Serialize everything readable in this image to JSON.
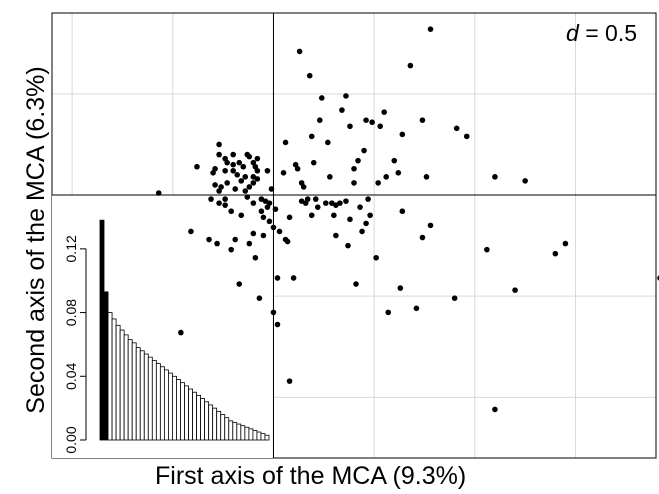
{
  "chart_data": {
    "type": "scatter",
    "xlabel": "First axis of the MCA (9.3%)",
    "ylabel": "Second axis of the MCA (6.3%)",
    "scale_label": {
      "symbol": "d",
      "text": " = 0.5"
    },
    "grid": true,
    "xlim": [
      -1.1,
      1.9
    ],
    "ylim": [
      -1.3,
      0.9
    ],
    "points": [
      [
        -0.57,
        0.01
      ],
      [
        -0.41,
        -0.18
      ],
      [
        -0.38,
        0.14
      ],
      [
        -0.3,
        0.11
      ],
      [
        -0.27,
        0.25
      ],
      [
        -0.27,
        0.2
      ],
      [
        -0.29,
        0.13
      ],
      [
        -0.29,
        0.05
      ],
      [
        -0.26,
        0.04
      ],
      [
        -0.24,
        0.18
      ],
      [
        -0.24,
        -0.02
      ],
      [
        -0.24,
        -0.05
      ],
      [
        -0.21,
        -0.08
      ],
      [
        -0.31,
        -0.02
      ],
      [
        -0.32,
        -0.22
      ],
      [
        -0.28,
        -0.24
      ],
      [
        -0.23,
        0.16
      ],
      [
        -0.2,
        0.2
      ],
      [
        -0.2,
        0.15
      ],
      [
        -0.2,
        0.12
      ],
      [
        -0.19,
        0.03
      ],
      [
        -0.18,
        0.1
      ],
      [
        -0.17,
        0.16
      ],
      [
        -0.16,
        0.07
      ],
      [
        -0.15,
        0.14
      ],
      [
        -0.14,
        0.09
      ],
      [
        -0.13,
        0.2
      ],
      [
        -0.12,
        0.19
      ],
      [
        -0.12,
        0.04
      ],
      [
        -0.1,
        0.16
      ],
      [
        -0.1,
        0.09
      ],
      [
        -0.1,
        0.06
      ],
      [
        -0.1,
        -0.04
      ],
      [
        -0.09,
        0.14
      ],
      [
        -0.08,
        0.18
      ],
      [
        -0.08,
        0.12
      ],
      [
        -0.08,
        0.08
      ],
      [
        -0.06,
        -0.02
      ],
      [
        -0.06,
        -0.08
      ],
      [
        -0.05,
        -0.11
      ],
      [
        -0.05,
        -0.2
      ],
      [
        -0.04,
        -0.03
      ],
      [
        -0.03,
        0.12
      ],
      [
        -0.03,
        -0.06
      ],
      [
        -0.02,
        -0.13
      ],
      [
        -0.01,
        0.03
      ],
      [
        0,
        -0.16
      ],
      [
        0.01,
        -0.07
      ],
      [
        0.03,
        -0.18
      ],
      [
        0.05,
        0.11
      ],
      [
        0.06,
        0.26
      ],
      [
        0.07,
        -0.23
      ],
      [
        0.08,
        -0.11
      ],
      [
        0.1,
        -0.41
      ],
      [
        -0.09,
        -0.31
      ],
      [
        -0.21,
        -0.27
      ],
      [
        -0.19,
        -0.22
      ],
      [
        -0.12,
        -0.24
      ],
      [
        -0.17,
        -0.44
      ],
      [
        -0.1,
        -0.19
      ],
      [
        -0.02,
        -0.04
      ],
      [
        -0.07,
        -0.51
      ],
      [
        0.02,
        -0.64
      ],
      [
        0,
        -0.58
      ],
      [
        -0.46,
        -0.68
      ],
      [
        0.02,
        -0.41
      ],
      [
        0.06,
        -0.22
      ],
      [
        0.12,
        0.13
      ],
      [
        0.14,
        -0.03
      ],
      [
        0.14,
        0.06
      ],
      [
        0.15,
        0.04
      ],
      [
        0.16,
        -0.04
      ],
      [
        0.17,
        -0.02
      ],
      [
        0.18,
        0.59
      ],
      [
        0.19,
        0.29
      ],
      [
        0.2,
        0.16
      ],
      [
        0.21,
        -0.02
      ],
      [
        0.22,
        -0.06
      ],
      [
        0.23,
        0.37
      ],
      [
        0.24,
        0.48
      ],
      [
        0.26,
        -0.04
      ],
      [
        0.27,
        0.26
      ],
      [
        0.28,
        0.09
      ],
      [
        0.29,
        -0.04
      ],
      [
        0.3,
        -0.1
      ],
      [
        0.31,
        -0.05
      ],
      [
        0.31,
        -0.2
      ],
      [
        0.33,
        -0.04
      ],
      [
        0.34,
        0.42
      ],
      [
        0.36,
        0.49
      ],
      [
        0.36,
        -0.03
      ],
      [
        0.37,
        -0.25
      ],
      [
        0.38,
        0.34
      ],
      [
        0.38,
        -0.12
      ],
      [
        0.4,
        0.13
      ],
      [
        0.41,
        -0.44
      ],
      [
        0.42,
        0.17
      ],
      [
        0.43,
        -0.06
      ],
      [
        0.44,
        -0.18
      ],
      [
        0.45,
        0.22
      ],
      [
        0.46,
        0.37
      ],
      [
        0.46,
        -0.14
      ],
      [
        0.47,
        -0.02
      ],
      [
        0.48,
        -0.1
      ],
      [
        0.49,
        0.36
      ],
      [
        0.51,
        -0.31
      ],
      [
        0.52,
        0.06
      ],
      [
        0.53,
        0.34
      ],
      [
        0.55,
        0.41
      ],
      [
        0.56,
        0.09
      ],
      [
        0.57,
        -0.58
      ],
      [
        0.6,
        0.17
      ],
      [
        0.62,
        0.11
      ],
      [
        0.63,
        -0.46
      ],
      [
        0.64,
        0.3
      ],
      [
        0.64,
        -0.08
      ],
      [
        0.68,
        0.64
      ],
      [
        0.71,
        -0.56
      ],
      [
        0.74,
        0.37
      ],
      [
        0.74,
        -0.21
      ],
      [
        0.76,
        0.09
      ],
      [
        0.78,
        0.82
      ],
      [
        0.78,
        -0.15
      ],
      [
        0.9,
        -0.51
      ],
      [
        0.91,
        0.33
      ],
      [
        0.96,
        0.29
      ],
      [
        1.2,
        -0.47
      ],
      [
        1.1,
        0.09
      ],
      [
        1.45,
        -0.24
      ],
      [
        1.92,
        -0.41
      ],
      [
        1.25,
        0.07
      ],
      [
        -0.23,
        0.06
      ],
      [
        -0.27,
        -0.04
      ],
      [
        -0.13,
        -0.01
      ],
      [
        0.13,
        0.71
      ],
      [
        0.11,
        0.15
      ],
      [
        1.06,
        -0.27
      ],
      [
        1.4,
        -0.29
      ],
      [
        1.1,
        -1.06
      ],
      [
        0.08,
        -0.92
      ],
      [
        -0.27,
        0.02
      ],
      [
        -0.24,
        0.12
      ],
      [
        -0.16,
        -0.1
      ],
      [
        -0.14,
        0.02
      ],
      [
        0.4,
        0.06
      ],
      [
        0.19,
        -0.1
      ]
    ],
    "inset_barplot": {
      "type": "bar",
      "ylim": [
        0,
        0.14
      ],
      "yticks": [
        "0.00",
        "0.04",
        "0.08",
        "0.12"
      ],
      "highlighted_bars": 2,
      "values": [
        0.138,
        0.093,
        0.08,
        0.076,
        0.072,
        0.069,
        0.066,
        0.063,
        0.061,
        0.058,
        0.056,
        0.054,
        0.052,
        0.05,
        0.048,
        0.046,
        0.044,
        0.042,
        0.04,
        0.038,
        0.036,
        0.034,
        0.032,
        0.03,
        0.028,
        0.026,
        0.024,
        0.022,
        0.02,
        0.018,
        0.016,
        0.014,
        0.012,
        0.011,
        0.01,
        0.009,
        0.008,
        0.007,
        0.006,
        0.005,
        0.004,
        0.003
      ]
    }
  }
}
